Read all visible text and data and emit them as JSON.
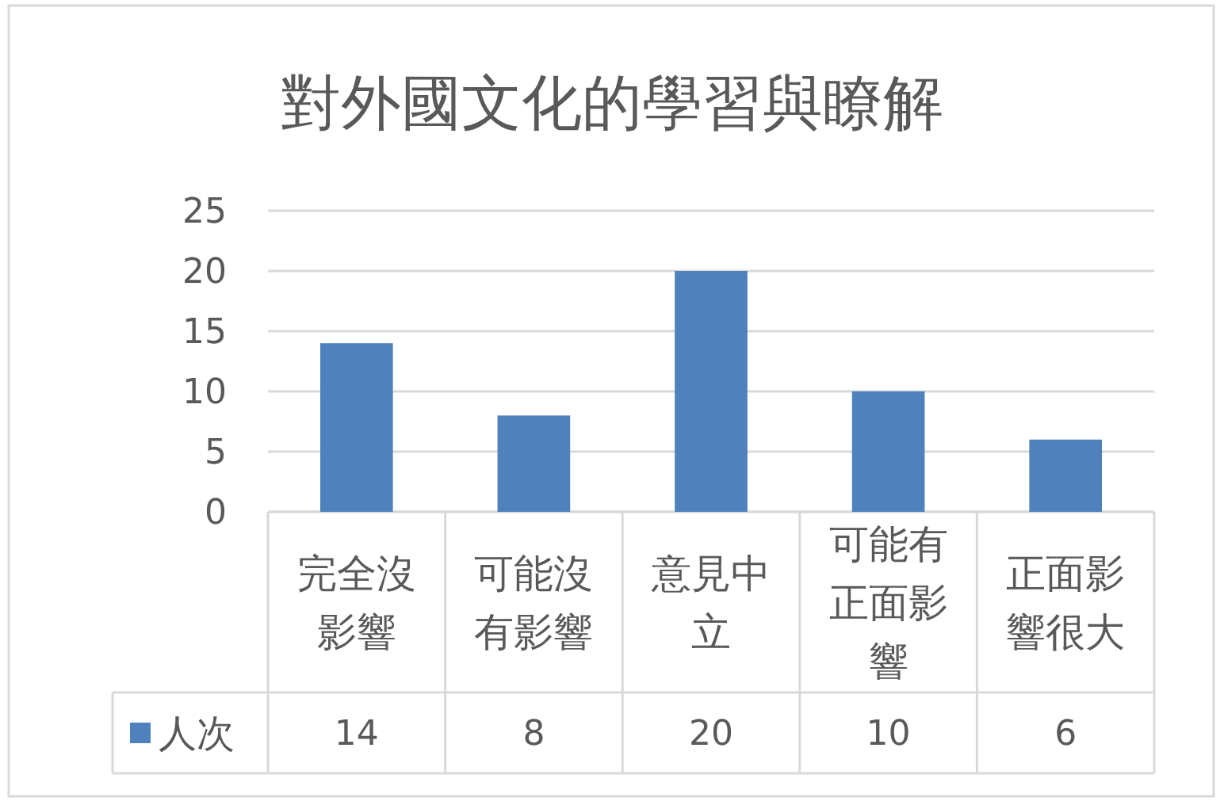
{
  "chart_data": {
    "type": "bar",
    "title": "對外國文化的學習與瞭解",
    "categories": [
      "完全沒影響",
      "可能沒有影響",
      "意見中立",
      "可能有正面影響",
      "正面影響很大"
    ],
    "series": [
      {
        "name": "人次",
        "color": "#4f81bd",
        "values": [
          14,
          8,
          20,
          10,
          6
        ]
      }
    ],
    "ylim": [
      0,
      25
    ],
    "yticks": [
      0,
      5,
      10,
      15,
      20,
      25
    ],
    "grid": "y",
    "legend": "bottom",
    "data_labels": true
  }
}
